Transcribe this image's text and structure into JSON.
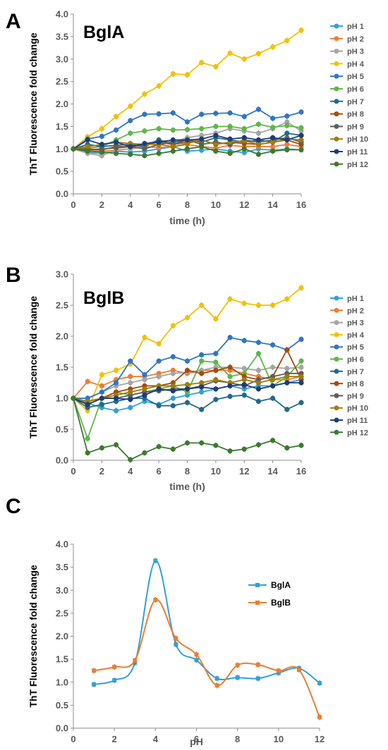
{
  "chart_data": [
    {
      "panel": "A",
      "type": "line",
      "title": "BglA",
      "xlabel": "time (h)",
      "ylabel": "ThT Fluorescence fold change",
      "xlim": [
        0,
        16
      ],
      "ylim": [
        0,
        4
      ],
      "xticks": [
        0,
        2,
        4,
        6,
        8,
        10,
        12,
        14,
        16
      ],
      "yticks": [
        "0.0",
        "0.5",
        "1.0",
        "1.5",
        "2.0",
        "2.5",
        "3.0",
        "3.5",
        "4.0"
      ],
      "grid": false,
      "legend": "right",
      "x": [
        0,
        1,
        2,
        3,
        4,
        5,
        6,
        7,
        8,
        9,
        10,
        11,
        12,
        13,
        14,
        15,
        16
      ],
      "series": [
        {
          "name": "pH 1",
          "color": "#31a0d8",
          "values": [
            1.0,
            0.92,
            0.9,
            0.95,
            0.93,
            0.95,
            1.0,
            1.05,
            0.95,
            0.97,
            1.0,
            0.95,
            0.92,
            1.0,
            0.97,
            1.0,
            0.98
          ]
        },
        {
          "name": "pH 2",
          "color": "#ed7d31",
          "values": [
            1.0,
            0.97,
            0.95,
            0.97,
            1.0,
            1.05,
            1.03,
            1.05,
            1.1,
            1.05,
            1.02,
            1.08,
            1.05,
            1.05,
            1.05,
            1.1,
            1.05
          ]
        },
        {
          "name": "pH 3",
          "color": "#a5a5a5",
          "values": [
            1.0,
            0.9,
            0.85,
            0.98,
            1.0,
            1.1,
            1.2,
            1.15,
            1.25,
            1.3,
            1.35,
            1.45,
            1.4,
            1.35,
            1.45,
            1.6,
            1.4
          ]
        },
        {
          "name": "pH 4",
          "color": "#f5c000",
          "values": [
            1.0,
            1.27,
            1.45,
            1.72,
            1.95,
            2.22,
            2.4,
            2.67,
            2.65,
            2.92,
            2.83,
            3.13,
            3.0,
            3.12,
            3.27,
            3.41,
            3.64
          ]
        },
        {
          "name": "pH 5",
          "color": "#2e75c8",
          "values": [
            1.0,
            1.22,
            1.28,
            1.42,
            1.63,
            1.77,
            1.78,
            1.8,
            1.6,
            1.77,
            1.79,
            1.8,
            1.72,
            1.88,
            1.68,
            1.73,
            1.82
          ]
        },
        {
          "name": "pH 6",
          "color": "#5cb846",
          "values": [
            1.0,
            1.02,
            1.05,
            1.2,
            1.35,
            1.4,
            1.45,
            1.42,
            1.43,
            1.45,
            1.5,
            1.5,
            1.45,
            1.55,
            1.48,
            1.52,
            1.47
          ]
        },
        {
          "name": "pH 7",
          "color": "#1f6b8e",
          "values": [
            1.0,
            1.1,
            1.05,
            1.08,
            1.1,
            1.05,
            1.2,
            1.1,
            1.2,
            1.15,
            1.25,
            1.2,
            1.15,
            1.2,
            1.15,
            1.35,
            1.3
          ]
        },
        {
          "name": "pH 8",
          "color": "#a84a0c",
          "values": [
            1.0,
            1.0,
            0.98,
            1.05,
            1.05,
            1.1,
            1.15,
            1.1,
            1.15,
            1.2,
            1.1,
            1.15,
            1.12,
            1.1,
            1.15,
            1.2,
            1.1
          ]
        },
        {
          "name": "pH 9",
          "color": "#5e5e5e",
          "values": [
            1.0,
            0.98,
            1.0,
            1.02,
            1.05,
            1.0,
            1.1,
            1.15,
            1.2,
            1.1,
            1.15,
            1.1,
            1.2,
            1.15,
            1.2,
            1.25,
            1.15
          ]
        },
        {
          "name": "pH 10",
          "color": "#9e7d0a",
          "values": [
            1.0,
            1.05,
            1.1,
            1.15,
            1.12,
            1.1,
            1.1,
            1.05,
            1.12,
            1.2,
            1.1,
            1.15,
            1.18,
            1.1,
            1.15,
            1.22,
            1.2
          ]
        },
        {
          "name": "pH 11",
          "color": "#1b3d7a",
          "values": [
            1.0,
            1.2,
            1.1,
            1.15,
            1.05,
            1.12,
            1.15,
            1.2,
            1.2,
            1.22,
            1.3,
            1.22,
            1.25,
            1.2,
            1.25,
            1.2,
            1.3
          ]
        },
        {
          "name": "pH 12",
          "color": "#3c7a2e",
          "values": [
            1.0,
            0.95,
            0.93,
            0.9,
            0.88,
            0.85,
            0.9,
            0.95,
            1.0,
            1.05,
            0.95,
            0.9,
            1.0,
            0.88,
            0.95,
            0.98,
            0.98
          ]
        }
      ]
    },
    {
      "panel": "B",
      "type": "line",
      "title": "BglB",
      "xlabel": "time (h)",
      "ylabel": "ThT Fluorescence fold change",
      "xlim": [
        0,
        16
      ],
      "ylim": [
        0,
        3
      ],
      "xticks": [
        0,
        2,
        4,
        6,
        8,
        10,
        12,
        14,
        16
      ],
      "yticks": [
        "0.0",
        "0.5",
        "1.0",
        "1.5",
        "2.0",
        "2.5",
        "3.0"
      ],
      "grid": false,
      "legend": "right",
      "x": [
        0,
        1,
        2,
        3,
        4,
        5,
        6,
        7,
        8,
        9,
        10,
        11,
        12,
        13,
        14,
        15,
        16
      ],
      "series": [
        {
          "name": "pH 1",
          "color": "#31a0d8",
          "values": [
            1.0,
            0.92,
            0.85,
            0.8,
            0.85,
            0.95,
            0.9,
            1.0,
            1.05,
            1.1,
            1.15,
            1.2,
            1.15,
            1.2,
            1.2,
            1.25,
            1.3
          ]
        },
        {
          "name": "pH 2",
          "color": "#ed7d31",
          "values": [
            1.0,
            1.27,
            1.2,
            1.3,
            1.35,
            1.35,
            1.4,
            1.45,
            1.4,
            1.45,
            1.45,
            1.45,
            1.4,
            1.35,
            1.3,
            1.3,
            1.35
          ]
        },
        {
          "name": "pH 3",
          "color": "#a5a5a5",
          "values": [
            1.0,
            1.0,
            1.1,
            1.2,
            1.25,
            1.3,
            1.35,
            1.4,
            1.42,
            1.45,
            1.5,
            1.5,
            1.48,
            1.45,
            1.5,
            1.48,
            1.5
          ]
        },
        {
          "name": "pH 4",
          "color": "#f5c000",
          "values": [
            1.0,
            0.8,
            1.38,
            1.45,
            1.55,
            1.98,
            1.88,
            2.17,
            2.3,
            2.5,
            2.28,
            2.6,
            2.53,
            2.5,
            2.5,
            2.6,
            2.78
          ]
        },
        {
          "name": "pH 5",
          "color": "#2e75c8",
          "values": [
            1.0,
            1.0,
            1.1,
            1.25,
            1.6,
            1.38,
            1.6,
            1.67,
            1.6,
            1.7,
            1.72,
            1.98,
            1.93,
            1.9,
            1.86,
            1.78,
            1.95
          ]
        },
        {
          "name": "pH 6",
          "color": "#5cb846",
          "values": [
            1.0,
            0.35,
            1.0,
            1.1,
            1.05,
            1.1,
            1.15,
            1.2,
            1.1,
            1.6,
            1.58,
            1.35,
            1.4,
            1.72,
            1.2,
            1.35,
            1.6
          ]
        },
        {
          "name": "pH 7",
          "color": "#1f6b8e",
          "values": [
            1.0,
            0.85,
            0.9,
            0.95,
            1.0,
            1.0,
            0.88,
            0.88,
            0.93,
            0.82,
            0.98,
            1.03,
            1.05,
            0.95,
            1.0,
            0.82,
            0.93
          ]
        },
        {
          "name": "pH 8",
          "color": "#a84a0c",
          "values": [
            1.0,
            0.95,
            1.0,
            1.1,
            1.15,
            1.2,
            1.2,
            1.25,
            1.45,
            1.4,
            1.45,
            1.5,
            1.35,
            1.3,
            1.35,
            1.78,
            1.3
          ]
        },
        {
          "name": "pH 9",
          "color": "#5e5e5e",
          "values": [
            1.0,
            0.9,
            1.0,
            1.0,
            1.05,
            1.1,
            1.12,
            1.15,
            1.15,
            1.2,
            1.28,
            1.25,
            1.2,
            1.3,
            1.35,
            1.4,
            1.4
          ]
        },
        {
          "name": "pH 10",
          "color": "#9e7d0a",
          "values": [
            1.0,
            0.95,
            1.0,
            1.05,
            1.1,
            1.15,
            1.2,
            1.2,
            1.22,
            1.25,
            1.3,
            1.25,
            1.3,
            1.25,
            1.3,
            1.35,
            1.35
          ]
        },
        {
          "name": "pH 11",
          "color": "#1b3d7a",
          "values": [
            1.0,
            0.9,
            1.0,
            1.0,
            0.98,
            1.05,
            1.15,
            1.12,
            1.15,
            1.18,
            1.15,
            1.2,
            1.22,
            1.15,
            1.2,
            1.25,
            1.25
          ]
        },
        {
          "name": "pH 12",
          "color": "#3c7a2e",
          "values": [
            1.0,
            0.12,
            0.2,
            0.25,
            0.01,
            0.12,
            0.22,
            0.18,
            0.28,
            0.28,
            0.24,
            0.15,
            0.18,
            0.25,
            0.32,
            0.2,
            0.24
          ]
        }
      ]
    },
    {
      "panel": "C",
      "type": "line",
      "title": "",
      "xlabel": "pH",
      "ylabel": "ThT Fluorescence fold change",
      "xlim": [
        0,
        12
      ],
      "ylim": [
        0,
        4
      ],
      "xticks": [
        0,
        2,
        4,
        6,
        8,
        10,
        12
      ],
      "yticks": [
        "0.0",
        "0.5",
        "1.0",
        "1.5",
        "2.0",
        "2.5",
        "3.0",
        "3.5",
        "4.0"
      ],
      "grid": false,
      "legend": "top-right",
      "smooth": true,
      "x": [
        1,
        2,
        3,
        4,
        5,
        6,
        7,
        8,
        9,
        10,
        11,
        12
      ],
      "series": [
        {
          "name": "BglA",
          "color": "#31a0d8",
          "values": [
            0.95,
            1.04,
            1.42,
            3.64,
            1.82,
            1.48,
            1.08,
            1.1,
            1.08,
            1.2,
            1.3,
            0.98
          ]
        },
        {
          "name": "BglB",
          "color": "#ed7d31",
          "values": [
            1.25,
            1.33,
            1.47,
            2.79,
            1.95,
            1.6,
            0.93,
            1.37,
            1.38,
            1.25,
            1.27,
            0.24
          ]
        }
      ]
    }
  ]
}
